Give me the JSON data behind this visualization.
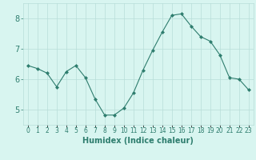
{
  "x": [
    0,
    1,
    2,
    3,
    4,
    5,
    6,
    7,
    8,
    9,
    10,
    11,
    12,
    13,
    14,
    15,
    16,
    17,
    18,
    19,
    20,
    21,
    22,
    23
  ],
  "y": [
    6.45,
    6.35,
    6.2,
    5.75,
    6.25,
    6.45,
    6.05,
    5.35,
    4.82,
    4.82,
    5.05,
    5.55,
    6.3,
    6.95,
    7.55,
    8.1,
    8.15,
    7.75,
    7.4,
    7.25,
    6.8,
    6.05,
    6.0,
    5.65
  ],
  "xlabel": "Humidex (Indice chaleur)",
  "xlim": [
    -0.5,
    23.5
  ],
  "ylim": [
    4.5,
    8.5
  ],
  "yticks": [
    5,
    6,
    7,
    8
  ],
  "xtick_labels": [
    "0",
    "1",
    "2",
    "3",
    "4",
    "5",
    "6",
    "7",
    "8",
    "9",
    "10",
    "11",
    "12",
    "13",
    "14",
    "15",
    "16",
    "17",
    "18",
    "19",
    "20",
    "21",
    "22",
    "23"
  ],
  "line_color": "#2e7d6e",
  "marker_color": "#2e7d6e",
  "grid_color": "#b8ddd8",
  "face_color": "#d8f5f0",
  "fig_bg": "#d8f5f0",
  "tick_color": "#2e7d6e",
  "label_color": "#2e7d6e"
}
